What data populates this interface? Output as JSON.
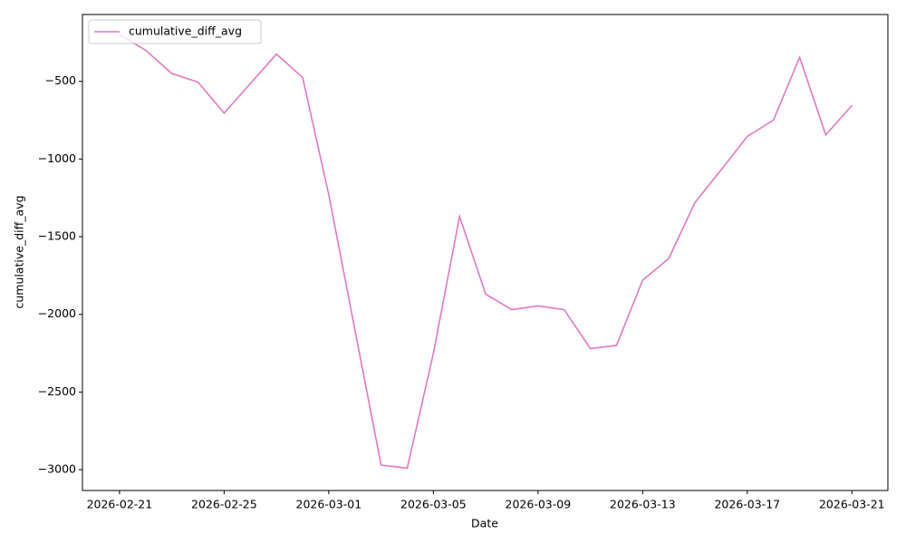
{
  "chart_data": {
    "type": "line",
    "x_label": "Date",
    "y_label": "cumulative_diff_avg",
    "x": [
      "2026-02-21",
      "2026-02-22",
      "2026-02-23",
      "2026-02-24",
      "2026-02-25",
      "2026-02-26",
      "2026-02-27",
      "2026-02-28",
      "2026-03-01",
      "2026-03-02",
      "2026-03-03",
      "2026-03-04",
      "2026-03-05",
      "2026-03-06",
      "2026-03-07",
      "2026-03-08",
      "2026-03-09",
      "2026-03-10",
      "2026-03-11",
      "2026-03-12",
      "2026-03-13",
      "2026-03-14",
      "2026-03-15",
      "2026-03-16",
      "2026-03-17",
      "2026-03-18",
      "2026-03-19",
      "2026-03-20",
      "2026-03-21"
    ],
    "series": [
      {
        "name": "cumulative_diff_avg",
        "color": "#e377c2",
        "values": [
          -200,
          -300,
          -450,
          -505,
          -705,
          -515,
          -325,
          -475,
          -1230,
          -2100,
          -2970,
          -2990,
          -2250,
          -1370,
          -1870,
          -1970,
          -1945,
          -1970,
          -2220,
          -2200,
          -1780,
          -1640,
          -1280,
          -1070,
          -855,
          -750,
          -345,
          -845,
          -655
        ]
      }
    ],
    "xlim": [
      "2026-02-19T14:00",
      "2026-03-22T09:00"
    ],
    "xticks": [
      "2026-02-21",
      "2026-02-25",
      "2026-03-01",
      "2026-03-05",
      "2026-03-09",
      "2026-03-13",
      "2026-03-17",
      "2026-03-21"
    ],
    "ylim": [
      -3134,
      -70
    ],
    "yticks": [
      {
        "value": -3000,
        "label": "−3000"
      },
      {
        "value": -2500,
        "label": "−2500"
      },
      {
        "value": -2000,
        "label": "−2000"
      },
      {
        "value": -1500,
        "label": "−1500"
      },
      {
        "value": -1000,
        "label": "−1000"
      },
      {
        "value": -500,
        "label": "−500"
      }
    ],
    "grid": false,
    "legend": "upper left"
  }
}
